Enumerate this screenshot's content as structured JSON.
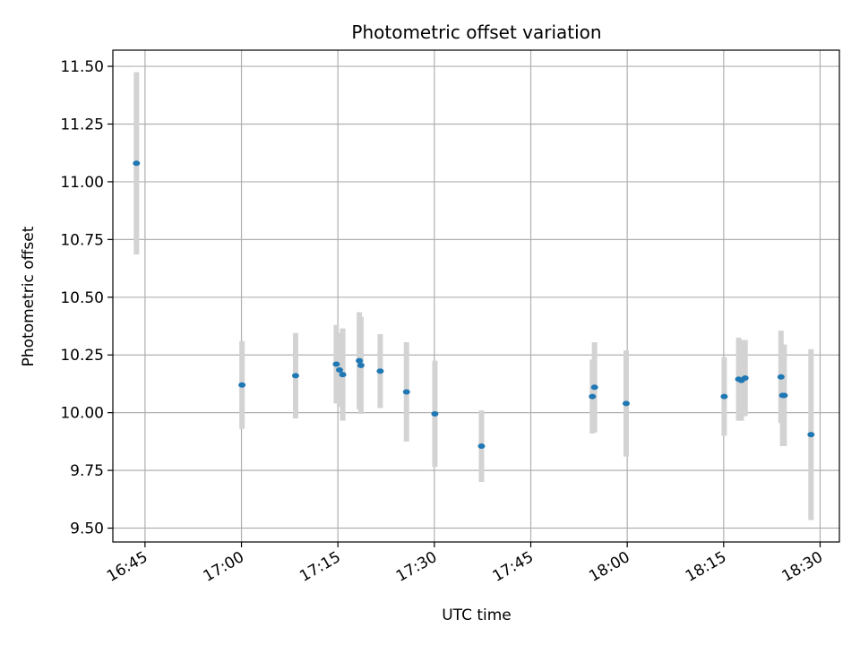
{
  "chart_data": {
    "type": "scatter",
    "title": "Photometric offset variation",
    "xlabel": "UTC time",
    "ylabel": "Photometric offset",
    "xlim": [
      "16:40",
      "18:33"
    ],
    "ylim": [
      9.44,
      11.57
    ],
    "x_ticks": [
      "16:45",
      "17:00",
      "17:15",
      "17:30",
      "17:45",
      "18:00",
      "18:15",
      "18:30"
    ],
    "y_ticks": [
      9.5,
      9.75,
      10.0,
      10.25,
      10.5,
      10.75,
      11.0,
      11.25,
      11.5
    ],
    "y_tick_labels": [
      "9.50",
      "9.75",
      "10.00",
      "10.25",
      "10.50",
      "10.75",
      "11.00",
      "11.25",
      "11.50"
    ],
    "grid": true,
    "point_color": "#1f77b4",
    "errorbar_color": "#d3d3d3",
    "points": [
      {
        "time": "16:43:40",
        "y": 11.08,
        "err": 0.395
      },
      {
        "time": "17:00:05",
        "y": 10.12,
        "err": 0.19
      },
      {
        "time": "17:08:25",
        "y": 10.16,
        "err": 0.185
      },
      {
        "time": "17:14:45",
        "y": 10.21,
        "err": 0.17
      },
      {
        "time": "17:15:15",
        "y": 10.185,
        "err": 0.16
      },
      {
        "time": "17:15:45",
        "y": 10.165,
        "err": 0.2
      },
      {
        "time": "17:18:20",
        "y": 10.225,
        "err": 0.21
      },
      {
        "time": "17:18:35",
        "y": 10.205,
        "err": 0.21
      },
      {
        "time": "17:21:35",
        "y": 10.18,
        "err": 0.16
      },
      {
        "time": "17:25:40",
        "y": 10.09,
        "err": 0.215
      },
      {
        "time": "17:30:05",
        "y": 9.995,
        "err": 0.23
      },
      {
        "time": "17:37:20",
        "y": 9.855,
        "err": 0.155
      },
      {
        "time": "17:54:35",
        "y": 10.07,
        "err": 0.16
      },
      {
        "time": "17:54:55",
        "y": 10.11,
        "err": 0.195
      },
      {
        "time": "17:59:50",
        "y": 10.04,
        "err": 0.23
      },
      {
        "time": "18:15:05",
        "y": 10.07,
        "err": 0.17
      },
      {
        "time": "18:17:20",
        "y": 10.145,
        "err": 0.18
      },
      {
        "time": "18:17:45",
        "y": 10.14,
        "err": 0.175
      },
      {
        "time": "18:18:20",
        "y": 10.15,
        "err": 0.165
      },
      {
        "time": "18:23:55",
        "y": 10.155,
        "err": 0.2
      },
      {
        "time": "18:24:10",
        "y": 10.075,
        "err": 0.22
      },
      {
        "time": "18:24:25",
        "y": 10.075,
        "err": 0.22
      },
      {
        "time": "18:28:35",
        "y": 9.905,
        "err": 0.37
      }
    ]
  }
}
